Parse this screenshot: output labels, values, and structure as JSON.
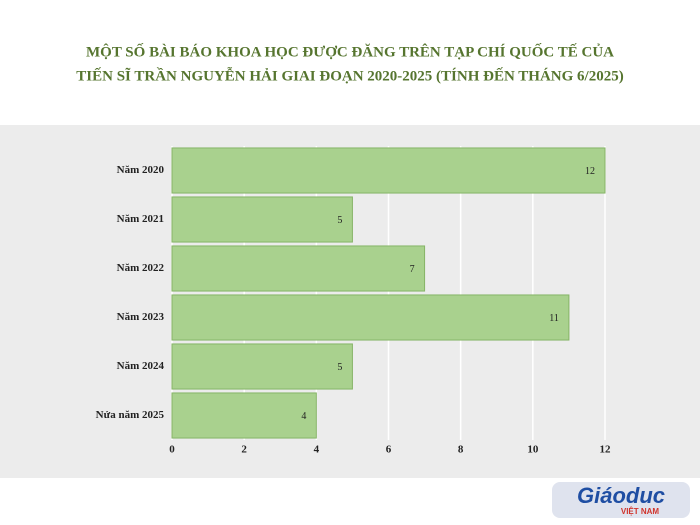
{
  "chart_data": {
    "type": "barh",
    "title": [
      "MỘT SỐ BÀI BÁO KHOA HỌC ĐƯỢC ĐĂNG TRÊN TẠP CHÍ QUỐC TẾ CỦA",
      "TIẾN SĨ TRẦN NGUYỄN HẢI GIAI ĐOẠN 2020-2025 (TÍNH ĐẾN THÁNG 6/2025)"
    ],
    "categories": [
      "Năm 2020",
      "Năm 2021",
      "Năm 2022",
      "Năm 2023",
      "Năm 2024",
      "Nửa năm 2025"
    ],
    "values": [
      12,
      5,
      7,
      11,
      5,
      4
    ],
    "color": "#a9d18e",
    "xlim": [
      0,
      12
    ],
    "xticks": [
      0,
      2,
      4,
      6,
      8,
      10,
      12
    ],
    "grid": true,
    "logo": [
      "Giáoduc",
      "VIỆT NAM"
    ]
  }
}
